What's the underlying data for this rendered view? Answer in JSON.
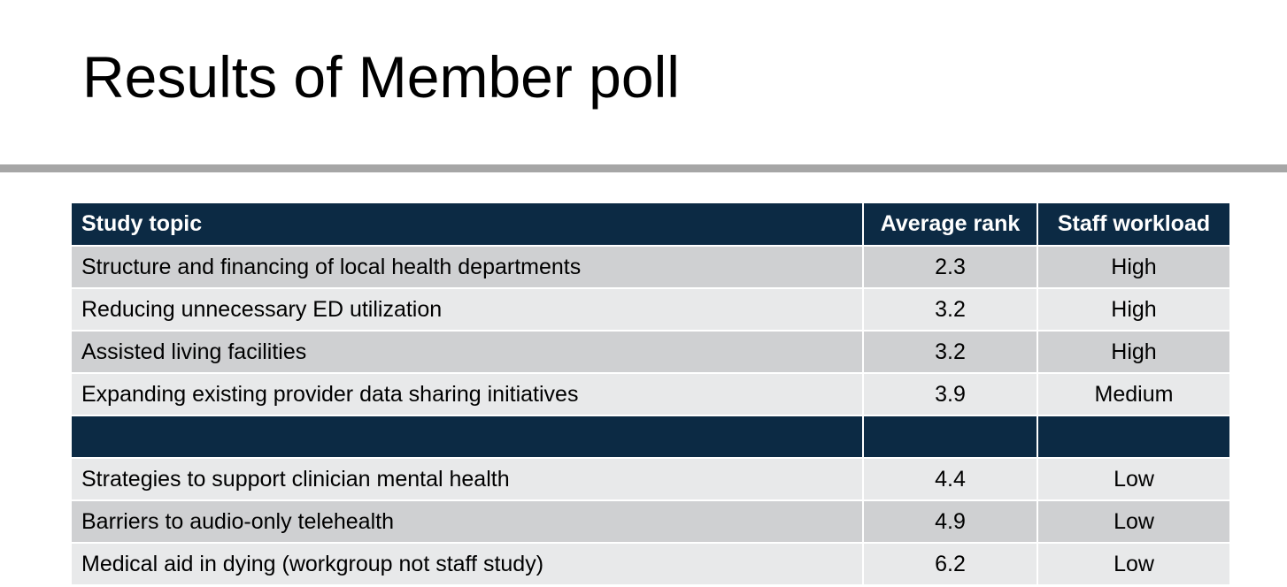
{
  "slide": {
    "title": "Results of Member poll"
  },
  "table": {
    "headers": {
      "topic": "Study topic",
      "rank": "Average rank",
      "workload": "Staff workload"
    },
    "group1": [
      {
        "topic": "Structure and financing of local health departments",
        "rank": "2.3",
        "workload": "High"
      },
      {
        "topic": "Reducing unnecessary ED utilization",
        "rank": "3.2",
        "workload": "High"
      },
      {
        "topic": "Assisted living facilities",
        "rank": "3.2",
        "workload": "High"
      },
      {
        "topic": "Expanding existing provider data sharing initiatives",
        "rank": "3.9",
        "workload": "Medium"
      }
    ],
    "group2": [
      {
        "topic": "Strategies to support clinician mental health",
        "rank": "4.4",
        "workload": "Low"
      },
      {
        "topic": "Barriers to audio-only telehealth",
        "rank": "4.9",
        "workload": "Low"
      },
      {
        "topic": "Medical aid in dying (workgroup not staff study)",
        "rank": "6.2",
        "workload": "Low"
      }
    ]
  },
  "colors": {
    "header_bg": "#0c2a44",
    "row_dark": "#cfd0d2",
    "row_light": "#e8e9ea",
    "divider": "#a6a6a6"
  }
}
